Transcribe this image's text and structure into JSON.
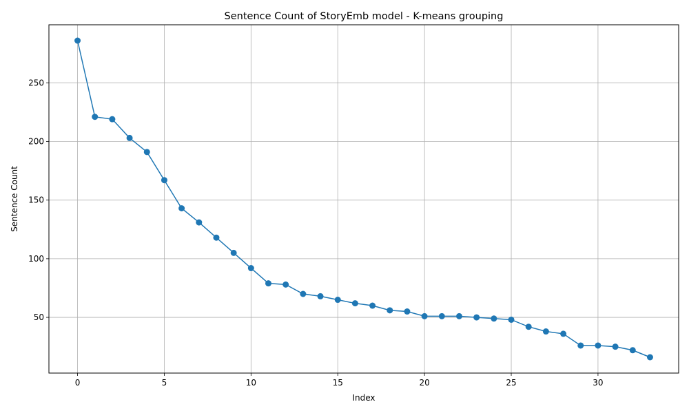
{
  "chart_data": {
    "type": "line",
    "title": "Sentence Count of StoryEmb model - K-means grouping",
    "xlabel": "Index",
    "ylabel": "Sentence Count",
    "xlim": [
      -1.65,
      34.65
    ],
    "ylim": [
      2.5,
      299.5
    ],
    "xticks": [
      0,
      5,
      10,
      15,
      20,
      25,
      30
    ],
    "yticks": [
      50,
      100,
      150,
      200,
      250
    ],
    "grid": true,
    "legend": "none",
    "color": "#1f77b4",
    "marker": "circle",
    "x": [
      0,
      1,
      2,
      3,
      4,
      5,
      6,
      7,
      8,
      9,
      10,
      11,
      12,
      13,
      14,
      15,
      16,
      17,
      18,
      19,
      20,
      21,
      22,
      23,
      24,
      25,
      26,
      27,
      28,
      29,
      30,
      31,
      32,
      33
    ],
    "series": [
      {
        "values": [
          286,
          221,
          219,
          203,
          191,
          167,
          143,
          131,
          118,
          105,
          92,
          79,
          78,
          70,
          68,
          65,
          62,
          60,
          56,
          55,
          51,
          51,
          51,
          50,
          49,
          48,
          42,
          38,
          36,
          26,
          26,
          25,
          22,
          16
        ]
      }
    ]
  }
}
